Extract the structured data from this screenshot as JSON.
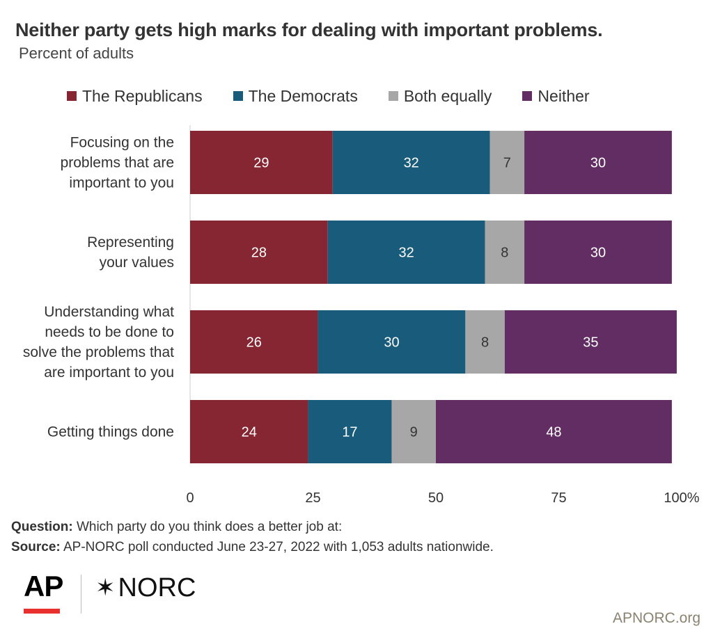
{
  "header": {
    "title": "Neither party gets high marks for dealing with important problems.",
    "subtitle": "Percent of adults"
  },
  "chart_data": {
    "type": "bar",
    "orientation": "horizontal",
    "stacked": true,
    "categories": [
      [
        "Focusing on the",
        "problems that are",
        "important to you"
      ],
      [
        "Representing",
        "your values"
      ],
      [
        "Understanding what",
        "needs to be done to",
        "solve the problems that",
        "are important to you"
      ],
      [
        "Getting things done"
      ]
    ],
    "series": [
      {
        "name": "The Republicans",
        "color": "#862633",
        "values": [
          29,
          28,
          26,
          24
        ]
      },
      {
        "name": "The Democrats",
        "color": "#185b7a",
        "values": [
          32,
          32,
          30,
          17
        ]
      },
      {
        "name": "Both equally",
        "color": "#a7a7a7",
        "values": [
          7,
          8,
          8,
          9
        ]
      },
      {
        "name": "Neither",
        "color": "#622d62",
        "values": [
          30,
          30,
          35,
          48
        ]
      }
    ],
    "x_ticks": [
      "0",
      "25",
      "50",
      "75",
      "100%"
    ],
    "xlim": [
      0,
      100
    ],
    "legend_position": "top",
    "grid": false
  },
  "footer": {
    "question_label": "Question:",
    "question_text": " Which party do you think does a better job at:",
    "source_label": "Source:",
    "source_text": " AP-NORC poll conducted June 23-27, 2022 with 1,053 adults nationwide."
  },
  "branding": {
    "ap_logo": "AP",
    "norc_logo": "NORC",
    "norc_icon": "asterisk-star-icon",
    "website": "APNORC.org",
    "accent_color": "#e8312f"
  }
}
